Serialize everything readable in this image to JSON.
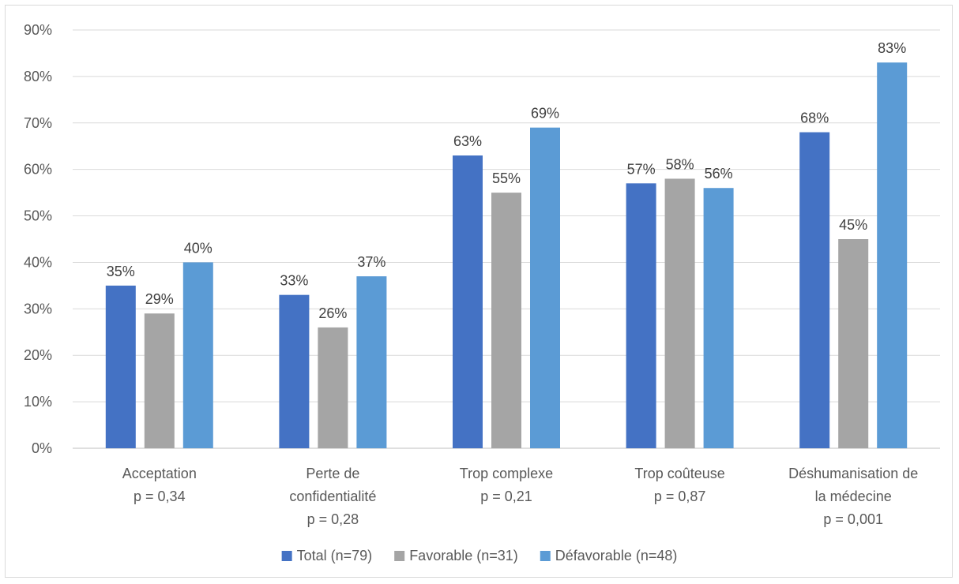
{
  "chart_data": {
    "type": "bar",
    "categories": [
      [
        "Acceptation",
        "p = 0,34"
      ],
      [
        "Perte de",
        "confidentialité",
        "p = 0,28"
      ],
      [
        "Trop complexe",
        "p = 0,21"
      ],
      [
        "Trop coûteuse",
        "p = 0,87"
      ],
      [
        "Déshumanisation de",
        "la médecine",
        "p = 0,001"
      ]
    ],
    "series": [
      {
        "name": "Total (n=79)",
        "color": "#4472C4",
        "values": [
          35,
          33,
          63,
          57,
          68
        ]
      },
      {
        "name": "Favorable (n=31)",
        "color": "#A5A5A5",
        "values": [
          29,
          26,
          55,
          58,
          45
        ]
      },
      {
        "name": "Défavorable (n=48)",
        "color": "#5B9BD5",
        "values": [
          40,
          37,
          69,
          56,
          83
        ]
      }
    ],
    "y_ticks": [
      "0%",
      "10%",
      "20%",
      "30%",
      "40%",
      "50%",
      "60%",
      "70%",
      "80%",
      "90%"
    ],
    "ylim": [
      0,
      90
    ],
    "value_suffix": "%",
    "grid": true,
    "legend_position": "bottom"
  }
}
